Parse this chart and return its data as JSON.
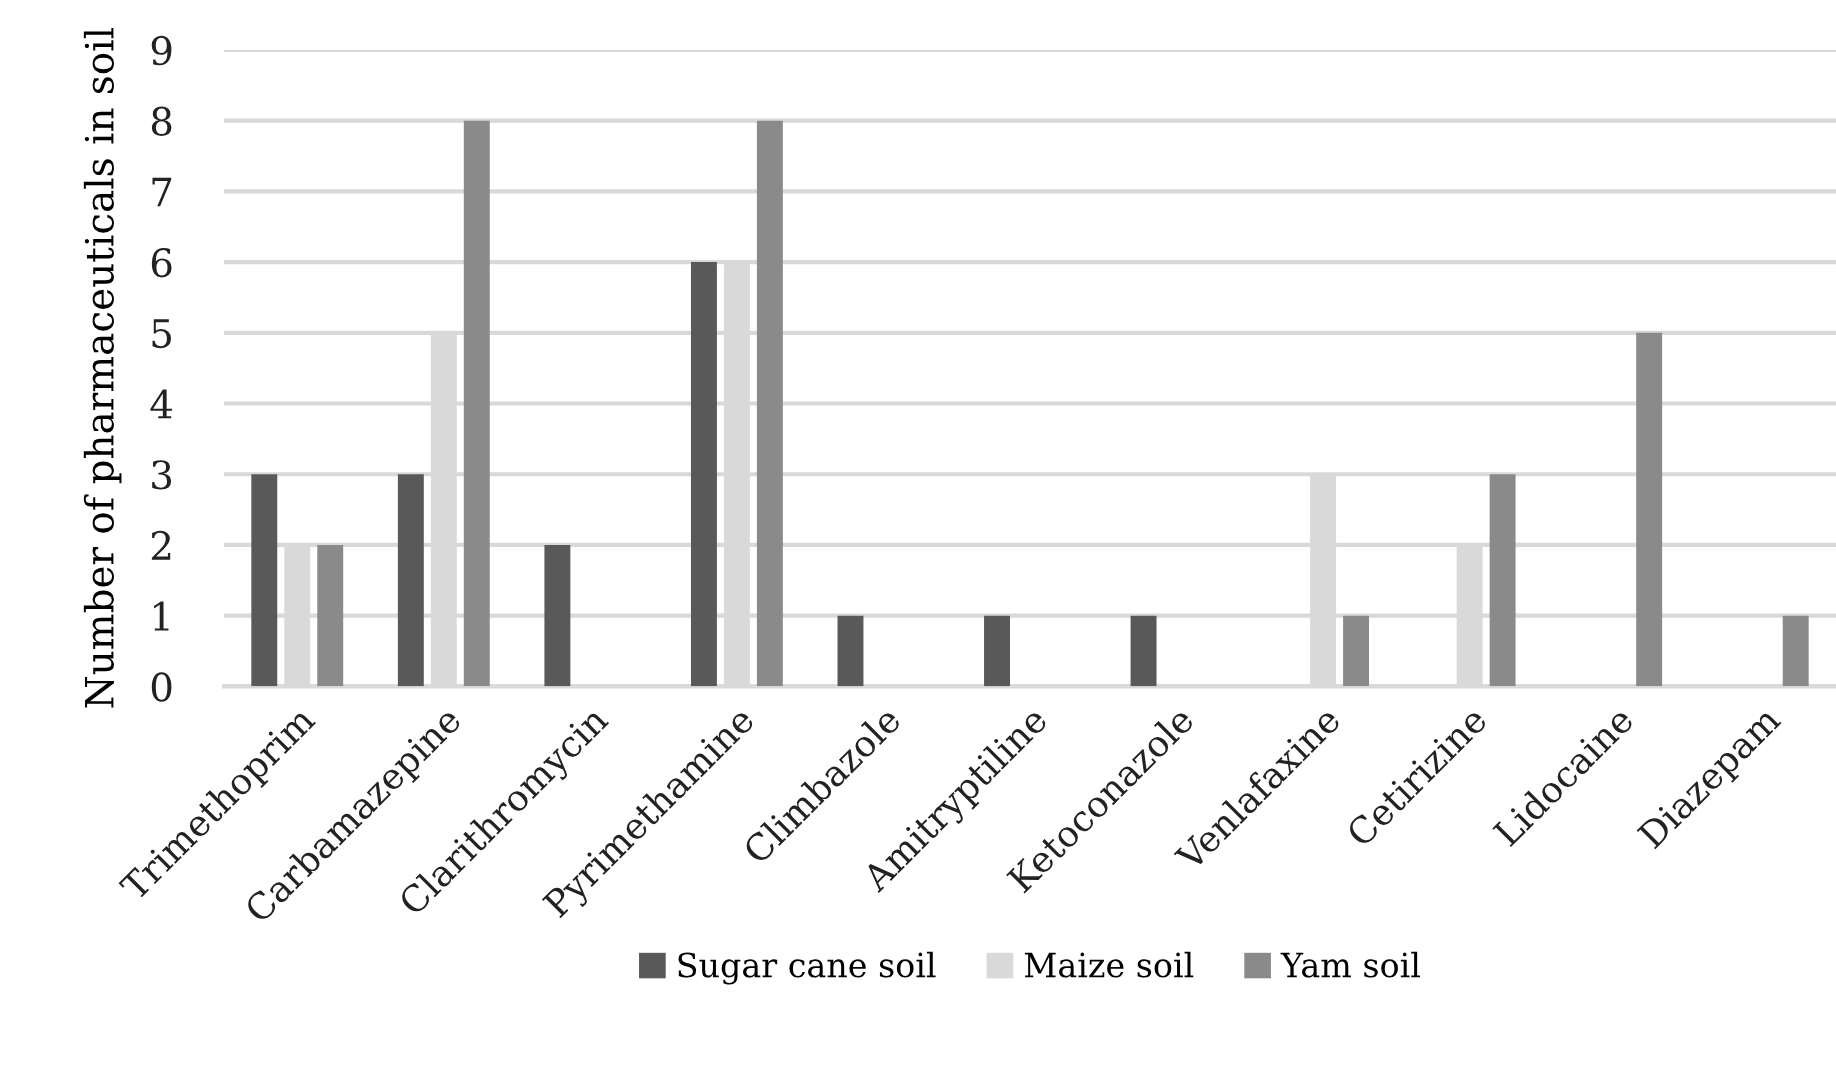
{
  "chart_data": {
    "type": "bar",
    "ylabel": "Number of pharmaceuticals in soil",
    "categories": [
      "Trimethoprim",
      "Carbamazepine",
      "Clarithromycin",
      "Pyrimethamine",
      "Climbazole",
      "Amitryptiline",
      "Ketoconazole",
      "Venlafaxine",
      "Cetirizine",
      "Lidocaine",
      "Diazepam"
    ],
    "series": [
      {
        "name": "Sugar cane soil",
        "color": "#595959",
        "values": [
          3,
          3,
          2,
          6,
          1,
          1,
          1,
          null,
          null,
          null,
          null
        ]
      },
      {
        "name": "Maize soil",
        "color": "#d9d9d9",
        "values": [
          2,
          5,
          null,
          6,
          null,
          null,
          null,
          3,
          2,
          null,
          null
        ]
      },
      {
        "name": "Yam soil",
        "color": "#8a8a8a",
        "values": [
          2,
          8,
          null,
          8,
          null,
          null,
          null,
          1,
          3,
          5,
          1
        ]
      }
    ],
    "ylim": [
      0,
      9
    ],
    "yticks": [
      0,
      1,
      2,
      3,
      4,
      5,
      6,
      7,
      8,
      9
    ],
    "grid": "y",
    "legend": "bottom"
  }
}
